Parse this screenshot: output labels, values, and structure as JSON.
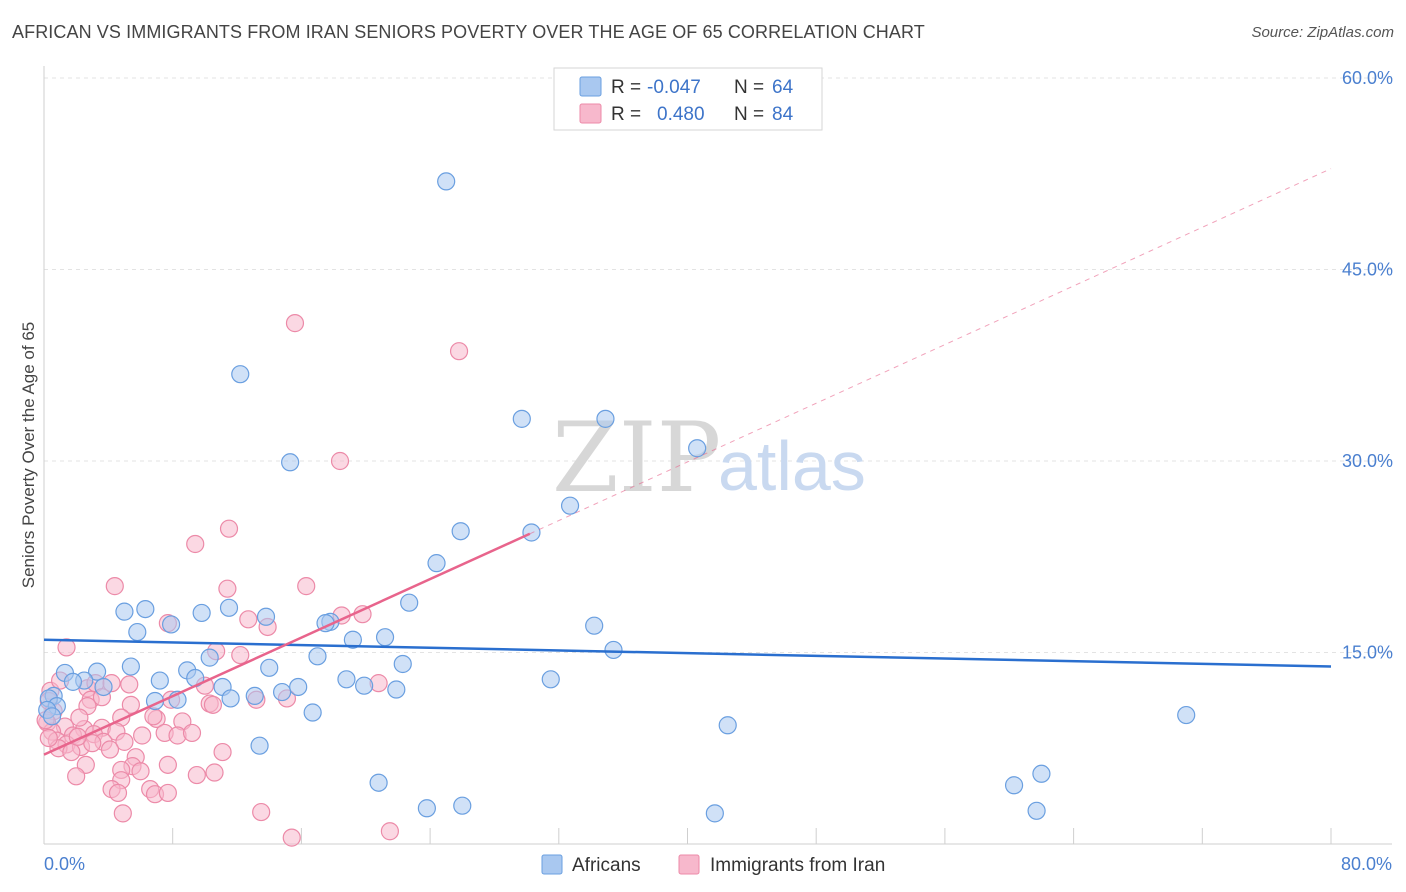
{
  "title": "AFRICAN VS IMMIGRANTS FROM IRAN SENIORS POVERTY OVER THE AGE OF 65 CORRELATION CHART",
  "source": "Source: ZipAtlas.com",
  "watermark": {
    "zip": "ZIP",
    "atlas": "atlas"
  },
  "legend": {
    "rows": [
      {
        "r_label": "R =",
        "r_value": "-0.047",
        "n_label": "N =",
        "n_value": "64"
      },
      {
        "r_label": "R =",
        "r_value": "0.480",
        "n_label": "N =",
        "n_value": "84"
      }
    ]
  },
  "bottom_legend": [
    {
      "label": "Africans"
    },
    {
      "label": "Immigrants from Iran"
    }
  ],
  "colors": {
    "africans_fill": "#a9c8f0",
    "africans_stroke": "#6a9fe0",
    "africans_line": "#2a6fcf",
    "iran_fill": "#f7b8cc",
    "iran_stroke": "#ec8aa8",
    "iran_line": "#e8648c",
    "grid": "#e3e3e3",
    "axis_text": "#4a7fcf"
  },
  "chart_data": {
    "type": "scatter",
    "title": "AFRICAN VS IMMIGRANTS FROM IRAN SENIORS POVERTY OVER THE AGE OF 65 CORRELATION CHART",
    "xlabel": "",
    "ylabel": "Seniors Poverty Over the Age of 65",
    "xlim": [
      0,
      80
    ],
    "ylim": [
      0,
      60
    ],
    "x_tick_labels": [
      "0.0%",
      "80.0%"
    ],
    "y_ticks": [
      15,
      30,
      45,
      60
    ],
    "y_tick_labels": [
      "15.0%",
      "30.0%",
      "45.0%",
      "60.0%"
    ],
    "series": [
      {
        "name": "Africans",
        "R": -0.047,
        "N": 64,
        "trend": {
          "x": [
            0,
            80
          ],
          "y": [
            16.0,
            13.9
          ]
        },
        "points": [
          [
            25.0,
            51.9
          ],
          [
            12.2,
            36.8
          ],
          [
            15.3,
            29.9
          ],
          [
            29.7,
            33.3
          ],
          [
            34.9,
            33.3
          ],
          [
            40.6,
            31.0
          ],
          [
            32.7,
            26.5
          ],
          [
            25.9,
            24.5
          ],
          [
            30.3,
            24.4
          ],
          [
            24.4,
            22.0
          ],
          [
            22.7,
            18.9
          ],
          [
            5.0,
            18.2
          ],
          [
            6.3,
            18.4
          ],
          [
            9.8,
            18.1
          ],
          [
            11.5,
            18.5
          ],
          [
            13.8,
            17.8
          ],
          [
            7.9,
            17.2
          ],
          [
            17.8,
            17.4
          ],
          [
            17.5,
            17.3
          ],
          [
            5.8,
            16.6
          ],
          [
            21.2,
            16.2
          ],
          [
            19.2,
            16.0
          ],
          [
            34.2,
            17.1
          ],
          [
            35.4,
            15.2
          ],
          [
            10.3,
            14.6
          ],
          [
            17.0,
            14.7
          ],
          [
            22.3,
            14.1
          ],
          [
            1.3,
            13.4
          ],
          [
            3.3,
            13.5
          ],
          [
            5.4,
            13.9
          ],
          [
            8.9,
            13.6
          ],
          [
            14.0,
            13.8
          ],
          [
            9.4,
            13.0
          ],
          [
            2.5,
            12.8
          ],
          [
            1.8,
            12.7
          ],
          [
            3.7,
            12.3
          ],
          [
            7.2,
            12.8
          ],
          [
            11.1,
            12.3
          ],
          [
            15.8,
            12.3
          ],
          [
            18.8,
            12.9
          ],
          [
            19.9,
            12.4
          ],
          [
            21.9,
            12.1
          ],
          [
            31.5,
            12.9
          ],
          [
            0.6,
            11.6
          ],
          [
            0.3,
            11.4
          ],
          [
            0.8,
            10.8
          ],
          [
            6.9,
            11.2
          ],
          [
            8.3,
            11.3
          ],
          [
            11.6,
            11.4
          ],
          [
            13.1,
            11.6
          ],
          [
            14.8,
            11.9
          ],
          [
            16.7,
            10.3
          ],
          [
            42.5,
            9.3
          ],
          [
            71.0,
            10.1
          ],
          [
            13.4,
            7.7
          ],
          [
            20.8,
            4.8
          ],
          [
            60.3,
            4.6
          ],
          [
            61.7,
            2.6
          ],
          [
            26.0,
            3.0
          ],
          [
            23.8,
            2.8
          ],
          [
            41.7,
            2.4
          ],
          [
            62.0,
            5.5
          ],
          [
            0.2,
            10.5
          ],
          [
            0.5,
            10.0
          ]
        ]
      },
      {
        "name": "Immigrants from Iran",
        "R": 0.48,
        "N": 84,
        "trend": {
          "x": [
            0,
            30.2
          ],
          "y": [
            7.0,
            24.3
          ]
        },
        "trend_extended": {
          "x": [
            30.2,
            80
          ],
          "y": [
            24.3,
            52.9
          ]
        },
        "points": [
          [
            15.6,
            40.8
          ],
          [
            25.8,
            38.6
          ],
          [
            18.4,
            30.0
          ],
          [
            11.5,
            24.7
          ],
          [
            9.4,
            23.5
          ],
          [
            4.4,
            20.2
          ],
          [
            11.4,
            20.0
          ],
          [
            16.3,
            20.2
          ],
          [
            12.7,
            17.6
          ],
          [
            13.9,
            17.0
          ],
          [
            18.5,
            17.9
          ],
          [
            19.8,
            18.0
          ],
          [
            7.7,
            17.3
          ],
          [
            1.4,
            15.4
          ],
          [
            10.7,
            15.1
          ],
          [
            12.2,
            14.8
          ],
          [
            0.4,
            12.0
          ],
          [
            2.7,
            12.2
          ],
          [
            3.2,
            12.6
          ],
          [
            4.2,
            12.6
          ],
          [
            5.3,
            12.5
          ],
          [
            10.0,
            12.4
          ],
          [
            15.1,
            11.4
          ],
          [
            20.8,
            12.6
          ],
          [
            0.3,
            11.2
          ],
          [
            2.9,
            11.3
          ],
          [
            3.6,
            11.5
          ],
          [
            7.9,
            11.3
          ],
          [
            10.3,
            11.0
          ],
          [
            13.2,
            11.3
          ],
          [
            2.7,
            10.8
          ],
          [
            5.4,
            10.9
          ],
          [
            0.6,
            10.4
          ],
          [
            4.8,
            9.9
          ],
          [
            7.0,
            9.8
          ],
          [
            8.6,
            9.6
          ],
          [
            0.2,
            9.5
          ],
          [
            1.3,
            9.2
          ],
          [
            2.5,
            9.0
          ],
          [
            3.6,
            9.1
          ],
          [
            0.5,
            8.8
          ],
          [
            1.8,
            8.5
          ],
          [
            3.1,
            8.6
          ],
          [
            4.5,
            8.8
          ],
          [
            7.5,
            8.7
          ],
          [
            8.3,
            8.5
          ],
          [
            0.8,
            8.1
          ],
          [
            1.4,
            7.8
          ],
          [
            2.3,
            7.6
          ],
          [
            3.7,
            8.0
          ],
          [
            5.0,
            8.0
          ],
          [
            6.1,
            8.5
          ],
          [
            0.9,
            7.5
          ],
          [
            1.7,
            7.2
          ],
          [
            4.1,
            7.4
          ],
          [
            5.7,
            6.8
          ],
          [
            5.5,
            6.1
          ],
          [
            4.8,
            5.8
          ],
          [
            4.8,
            5.0
          ],
          [
            6.0,
            5.7
          ],
          [
            7.7,
            6.2
          ],
          [
            9.5,
            5.4
          ],
          [
            10.6,
            5.6
          ],
          [
            11.1,
            7.2
          ],
          [
            2.6,
            6.2
          ],
          [
            2.0,
            5.3
          ],
          [
            4.2,
            4.3
          ],
          [
            4.6,
            4.0
          ],
          [
            6.6,
            4.3
          ],
          [
            6.9,
            3.9
          ],
          [
            7.7,
            4.0
          ],
          [
            13.5,
            2.5
          ],
          [
            4.9,
            2.4
          ],
          [
            15.4,
            0.5
          ],
          [
            21.5,
            1.0
          ],
          [
            1.0,
            12.8
          ],
          [
            2.2,
            9.9
          ],
          [
            0.3,
            8.3
          ],
          [
            3.0,
            7.9
          ],
          [
            0.1,
            9.7
          ],
          [
            9.2,
            8.7
          ],
          [
            10.5,
            10.9
          ],
          [
            6.8,
            10.0
          ],
          [
            2.1,
            8.4
          ]
        ]
      }
    ]
  }
}
